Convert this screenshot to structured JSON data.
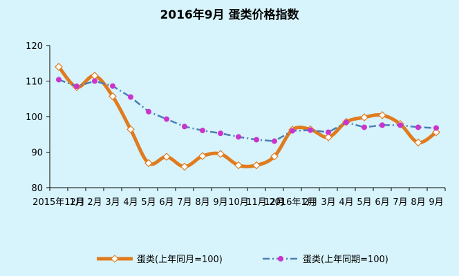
{
  "chart_data": {
    "type": "line",
    "title": "2016年9月 蛋类价格指数",
    "categories": [
      "2015年12月",
      "1月",
      "2月",
      "3月",
      "4月",
      "5月",
      "6月",
      "7月",
      "8月",
      "9月",
      "10月",
      "11月",
      "12月",
      "2016年1月",
      "2月",
      "3月",
      "4月",
      "5月",
      "6月",
      "7月",
      "8月",
      "9月"
    ],
    "x_tick_labels": [
      "2015年12月",
      "1月",
      "2月",
      "3月",
      "4月",
      "5月",
      "6月",
      "7月",
      "8月",
      "9月",
      "10月",
      "11月",
      "12月",
      "2016年1月",
      "2月",
      "3月",
      "4月",
      "5月",
      "6月",
      "7月",
      "8月",
      "9月"
    ],
    "yticks": [
      "80",
      "90",
      "100",
      "110",
      "120"
    ],
    "ylim": [
      80,
      120
    ],
    "grid": false,
    "legend_position": "bottom",
    "series": [
      {
        "name": "蛋类(上年同月=100)",
        "color": "#e07b1f",
        "marker": "diamond",
        "smooth": true,
        "values": [
          114.0,
          108.3,
          111.5,
          105.7,
          96.4,
          86.9,
          88.7,
          85.9,
          88.9,
          89.5,
          86.3,
          86.3,
          88.8,
          96.3,
          96.4,
          94.2,
          98.5,
          99.8,
          100.4,
          97.9,
          92.7,
          95.6
        ]
      },
      {
        "name": "蛋类(上年同期=100)",
        "color": "#4a7fb5",
        "marker": "circle",
        "marker_color": "#cc33cc",
        "smooth": false,
        "values": [
          110.4,
          108.5,
          110.0,
          108.6,
          105.5,
          101.4,
          99.3,
          97.2,
          96.1,
          95.3,
          94.3,
          93.5,
          93.1,
          96.0,
          96.2,
          95.6,
          98.4,
          97.0,
          97.6,
          97.6,
          97.0,
          96.8
        ]
      }
    ]
  }
}
